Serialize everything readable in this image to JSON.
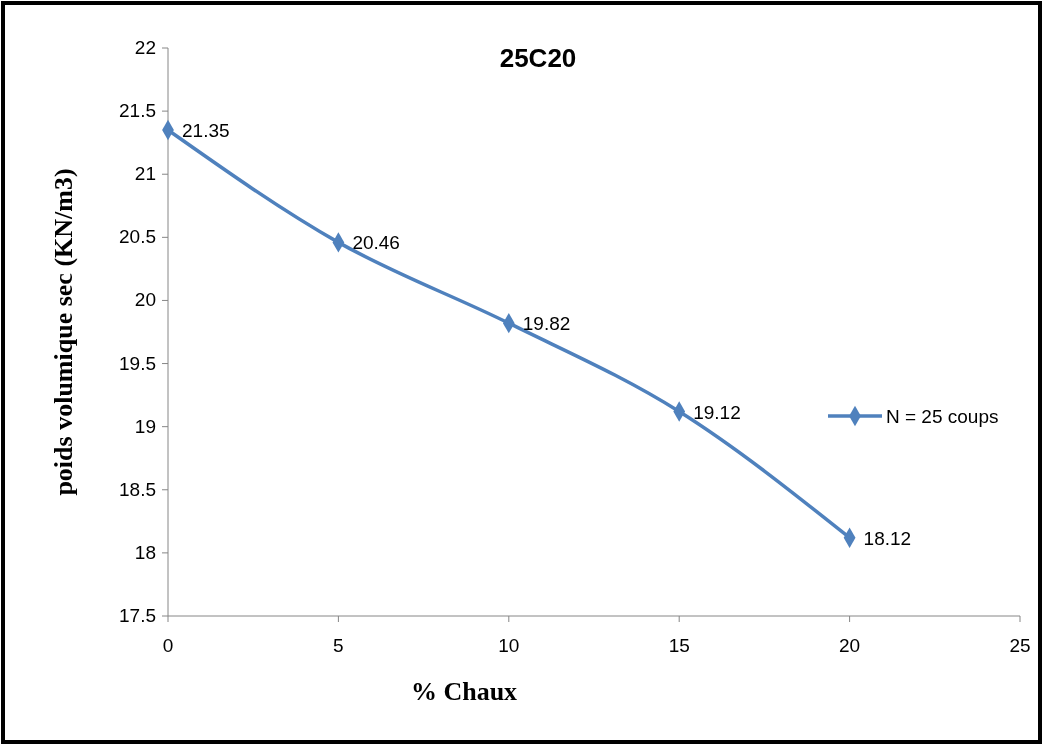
{
  "chart_data": {
    "type": "line",
    "title": "25C20",
    "xlabel": "% Chaux",
    "ylabel": "poids volumique sec (KN/m3)",
    "x": [
      0,
      5,
      10,
      15,
      20
    ],
    "series": [
      {
        "name": "N = 25 coups",
        "color": "#4f81bd",
        "values": [
          21.35,
          20.46,
          19.82,
          19.12,
          18.12
        ]
      }
    ],
    "xlim": [
      0,
      25
    ],
    "xticks": [
      0,
      5,
      10,
      15,
      20,
      25
    ],
    "ylim": [
      17.5,
      22
    ],
    "yticks": [
      17.5,
      18,
      18.5,
      19,
      19.5,
      20,
      20.5,
      21,
      21.5,
      22
    ],
    "data_labels": true,
    "marker": "diamond",
    "line_style": "solid",
    "legend": "right",
    "grid": false
  }
}
